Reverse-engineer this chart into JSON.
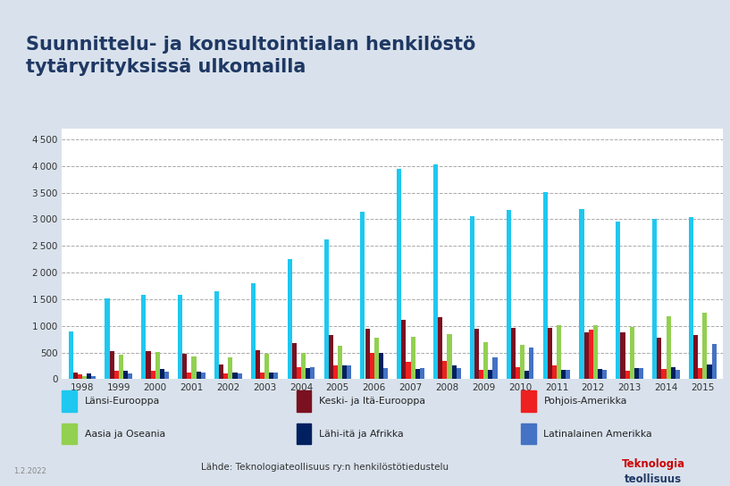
{
  "title": "Suunnittelu- ja konsultointialan henkilöstö\ntytäryrityksissä ulkomailla",
  "years": [
    1998,
    1999,
    2000,
    2001,
    2002,
    2003,
    2004,
    2005,
    2006,
    2007,
    2008,
    2009,
    2010,
    2011,
    2012,
    2013,
    2014,
    2015
  ],
  "series": {
    "Länsi-Eurooppa": [
      900,
      1520,
      1590,
      1590,
      1650,
      1800,
      2250,
      2620,
      3150,
      3950,
      4030,
      3060,
      3180,
      3510,
      3190,
      2960,
      3010,
      3050
    ],
    "Keski- ja Itä-Eurooppa": [
      130,
      530,
      530,
      480,
      270,
      540,
      670,
      820,
      950,
      1110,
      1160,
      940,
      960,
      960,
      870,
      870,
      770,
      830
    ],
    "Pohjois-Amerikka": [
      90,
      150,
      150,
      130,
      100,
      120,
      230,
      260,
      490,
      320,
      340,
      170,
      220,
      250,
      920,
      150,
      190,
      200
    ],
    "Aasia ja Oseania": [
      50,
      450,
      510,
      430,
      410,
      470,
      500,
      620,
      770,
      800,
      850,
      690,
      640,
      1010,
      1020,
      980,
      1180,
      1250
    ],
    "Lähi-itä ja Afrikka": [
      100,
      150,
      190,
      145,
      120,
      130,
      200,
      260,
      490,
      190,
      250,
      170,
      155,
      175,
      190,
      200,
      230,
      270
    ],
    "Latinalainen Amerikka": [
      50,
      100,
      140,
      130,
      110,
      120,
      220,
      250,
      210,
      210,
      210,
      400,
      600,
      180,
      180,
      200,
      180,
      660
    ]
  },
  "colors": {
    "Länsi-Eurooppa": "#1EC8F0",
    "Keski- ja Itä-Eurooppa": "#7B1020",
    "Pohjois-Amerikka": "#EE2020",
    "Aasia ja Oseania": "#92D050",
    "Lähi-itä ja Afrikka": "#002060",
    "Latinalainen Amerikka": "#4472C4"
  },
  "ylim": [
    0,
    4700
  ],
  "yticks": [
    0,
    500,
    1000,
    1500,
    2000,
    2500,
    3000,
    3500,
    4000,
    4500
  ],
  "source": "Lähde: Teknologiateollisuus ry:n henkilöstötiedustelu",
  "date": "1.2.2022",
  "outer_bg": "#D9E2EC",
  "title_bg": "#FFFFFF",
  "chart_bg": "#FFFFFF",
  "title_color": "#1F3864",
  "grid_color": "#AAAAAA",
  "logo_color1": "#CC0000",
  "logo_color2": "#1F3864"
}
